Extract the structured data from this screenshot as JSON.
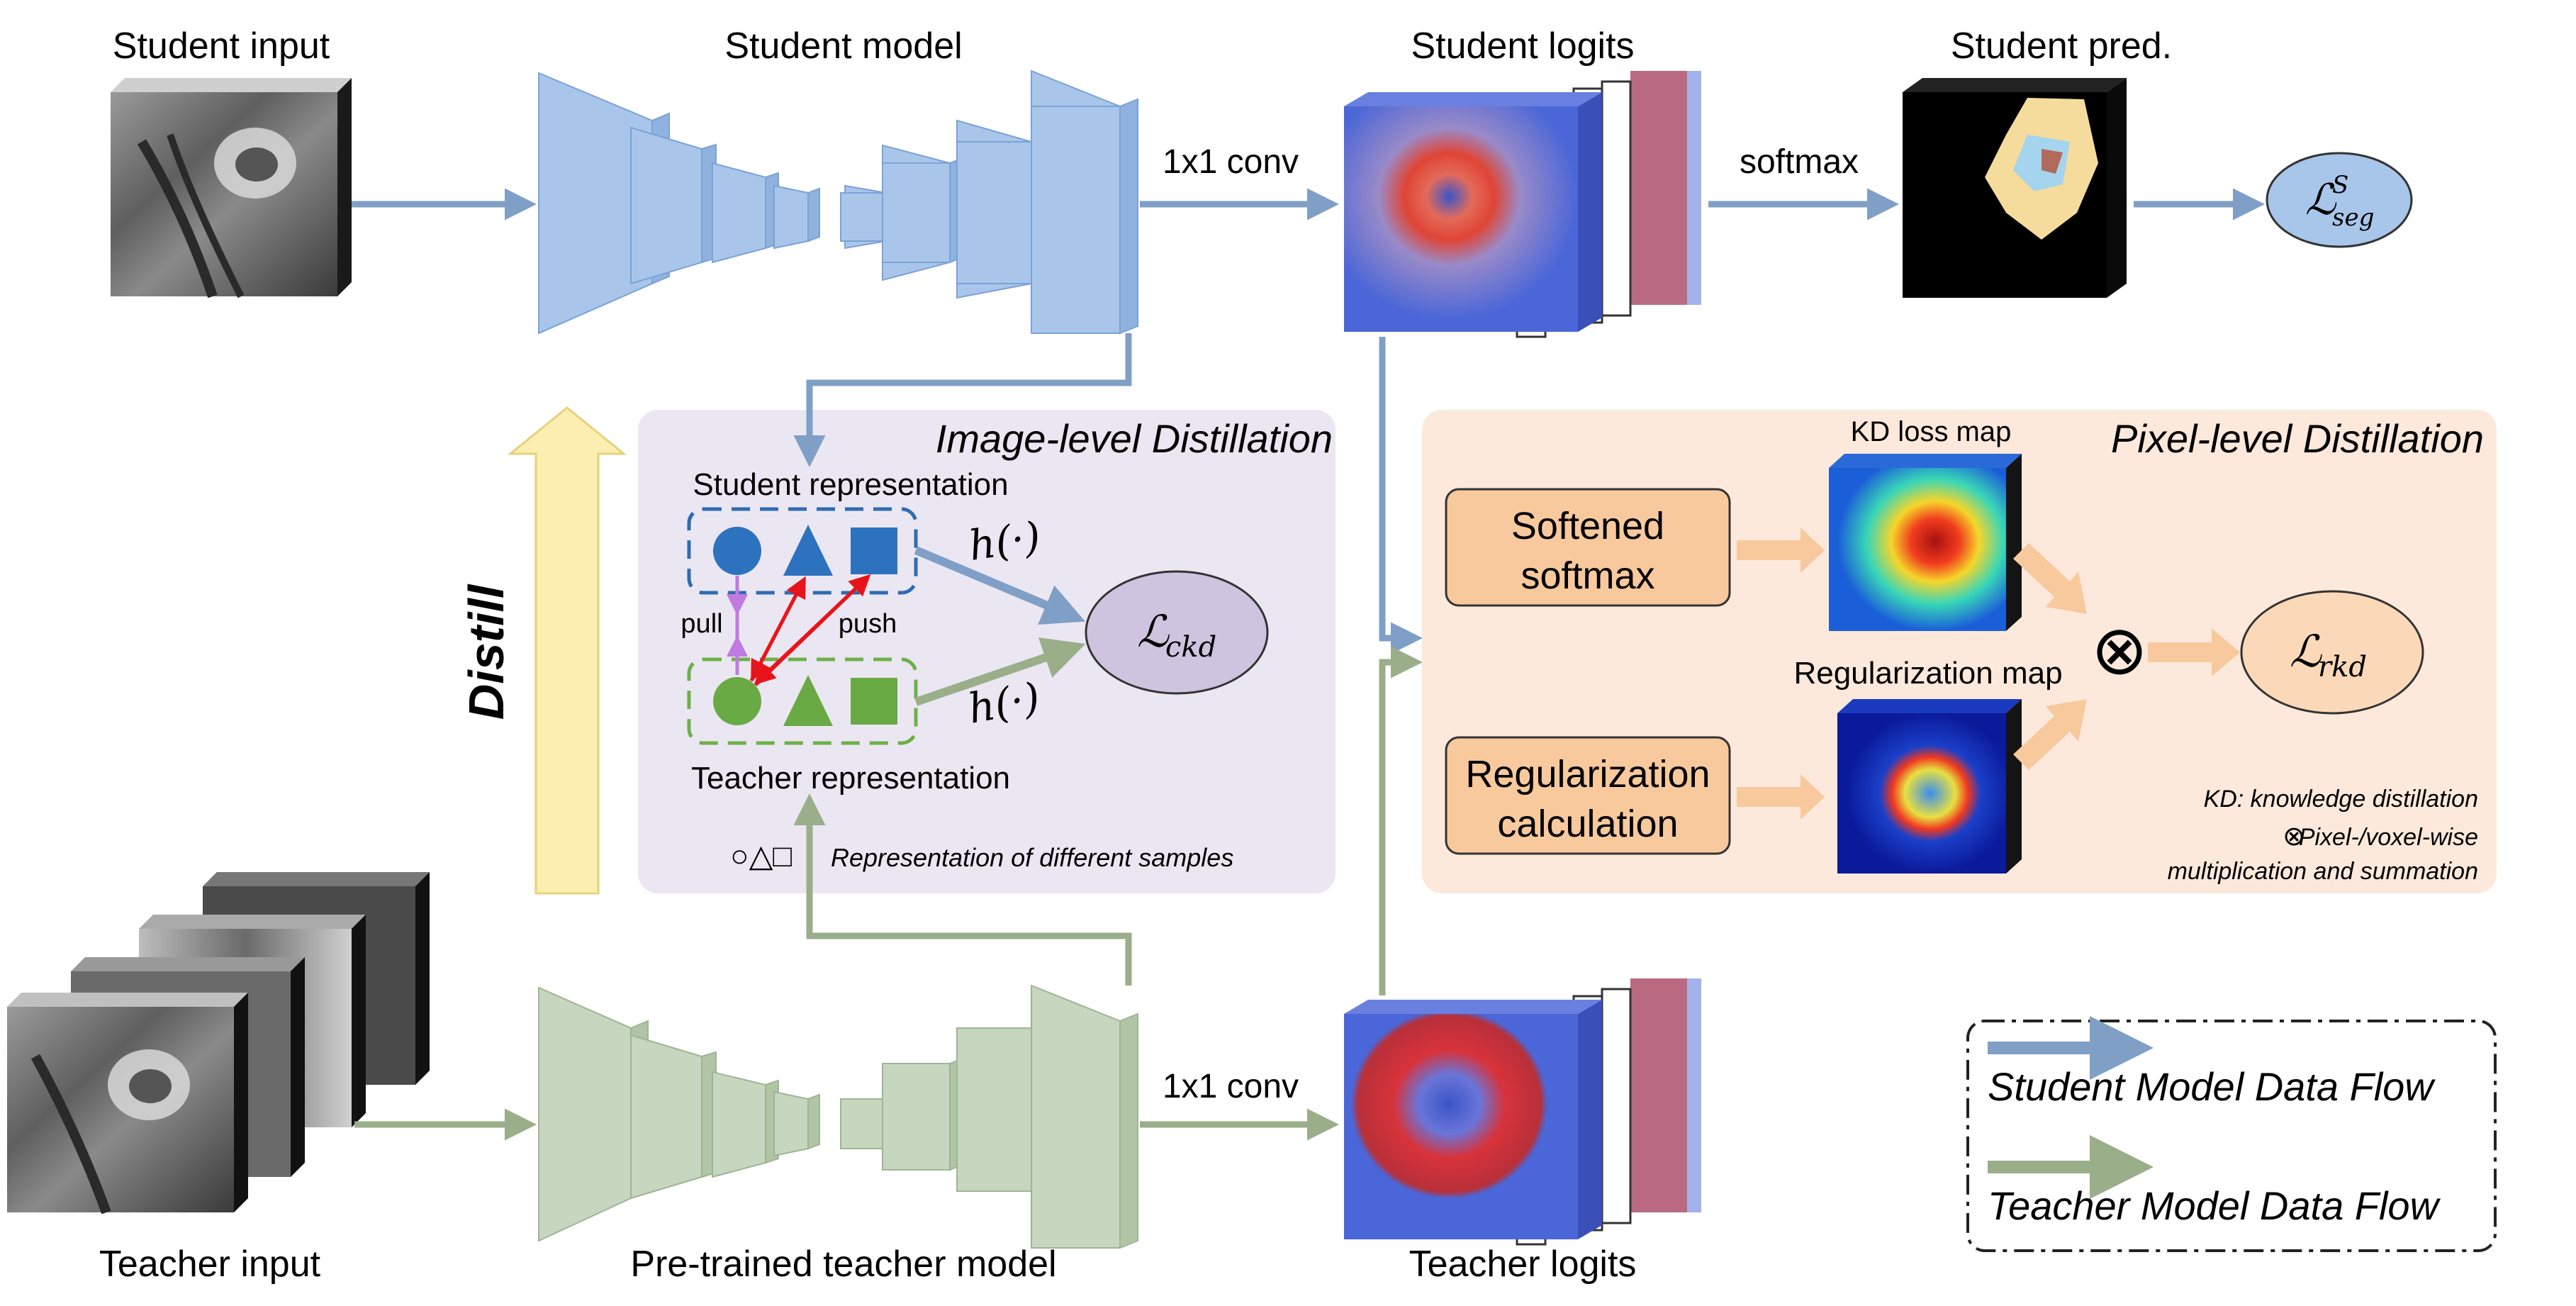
{
  "labels": {
    "student_input": "Student input",
    "student_model": "Student model",
    "student_logits": "Student logits",
    "student_pred": "Student pred.",
    "teacher_input": "Teacher input",
    "teacher_model": "Pre-trained teacher model",
    "teacher_logits": "Teacher logits",
    "conv_student": "1x1 conv",
    "conv_teacher": "1x1 conv",
    "softmax": "softmax",
    "distill": "Distill"
  },
  "image_level": {
    "title": "Image-level Distillation",
    "student_rep": "Student representation",
    "teacher_rep": "Teacher representation",
    "pull": "pull",
    "push": "push",
    "h_top": "h(·)",
    "h_bottom": "h(·)",
    "loss_main": "ℒ",
    "loss_sub": "ckd",
    "samples_symbols": "○△□",
    "samples_note": "Representation of different samples"
  },
  "pixel_level": {
    "title": "Pixel-level Distillation",
    "kd_map": "KD loss map",
    "reg_map": "Regularization map",
    "softened_1": "Softened",
    "softened_2": "softmax",
    "reg_calc_1": "Regularization",
    "reg_calc_2": "calculation",
    "otimes": "⊗",
    "loss_main": "ℒ",
    "loss_sub": "rkd",
    "note_kd": "KD: knowledge distillation",
    "note_mult_sym": "⊗",
    "note_mult_1": "Pixel-/voxel-wise",
    "note_mult_2": "multiplication and summation"
  },
  "seg_loss": {
    "main": "ℒ",
    "sup": "S",
    "sub": "seg"
  },
  "legend": {
    "student": "Student Model Data Flow",
    "teacher": "Teacher Model Data Flow"
  },
  "colors": {
    "student_flow": "#7f9fc6",
    "teacher_flow": "#9aae8a",
    "student_block": "#a9c6ea",
    "teacher_block": "#c6d6bf",
    "image_panel": "#ebe7f2",
    "pixel_panel": "#fde9dc",
    "orange_box": "#f8c99d",
    "loss_blue": "#a8c5ea",
    "loss_purple": "#cfc4df",
    "loss_orange": "#fbd9b8",
    "distill_arrow": "#fbeeb0"
  }
}
